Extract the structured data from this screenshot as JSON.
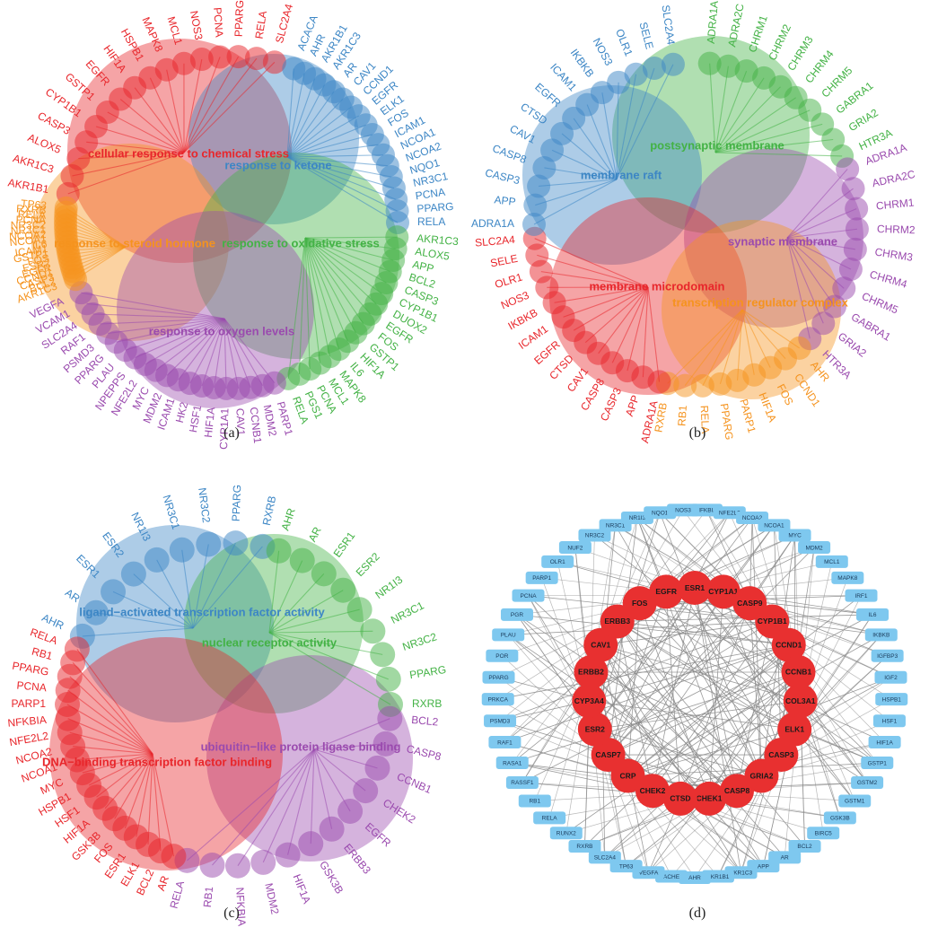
{
  "captions": {
    "a": "(a)",
    "b": "(b)",
    "c": "(c)",
    "d": "(d)"
  },
  "colors": {
    "red": "#e8262b",
    "blue": "#3c86c5",
    "green": "#43b245",
    "purple": "#9a4aae",
    "orange": "#f5931e",
    "node_red": "#e83030",
    "node_blue": "#7ec8ef",
    "edge": "#8a8a8a"
  },
  "panel_a": {
    "terms": [
      {
        "name": "cellular response to chemical stress",
        "color": "red"
      },
      {
        "name": "response to ketone",
        "color": "blue"
      },
      {
        "name": "response to steroid hormone",
        "color": "orange"
      },
      {
        "name": "response to oxidative stress",
        "color": "green"
      },
      {
        "name": "response to oxygen levels",
        "color": "purple"
      }
    ],
    "groups": [
      {
        "color": "red",
        "genes": [
          "AKR1B1",
          "AKR1C3",
          "ALOX5",
          "CASP3",
          "CYP1B1",
          "GSTP1",
          "EGFR",
          "HIF1A",
          "HSPB1",
          "MAPK8",
          "MCL1",
          "NOS3",
          "PCNA",
          "PPARG",
          "RELA",
          "SLC2A4"
        ]
      },
      {
        "color": "blue",
        "genes": [
          "ACACA",
          "AHR",
          "AKR1B1",
          "AKR1C3",
          "AR",
          "CAV1",
          "CCND1",
          "EGFR",
          "ELK1",
          "FOS",
          "ICAM1",
          "NCOA1",
          "NCOA2",
          "NQO1",
          "NR3C1",
          "PCNA",
          "PPARG",
          "RELA"
        ]
      },
      {
        "color": "green",
        "genes": [
          "AKR1C3",
          "ALOX5",
          "APP",
          "BCL2",
          "CASP3",
          "CYP1B1",
          "DUOX2",
          "EGFR",
          "FOS",
          "GSTP1",
          "HIF1A",
          "IL6",
          "MAPK8",
          "MCL1",
          "PCNA",
          "PGS1",
          "RELA"
        ]
      },
      {
        "color": "purple",
        "genes": [
          "PARP1",
          "MDM2",
          "CCNB1",
          "CAV1",
          "CYP1A1",
          "HIF1A",
          "HSF1",
          "HK2",
          "ICAM1",
          "MDM2",
          "MYC",
          "NFE2L2",
          "NPEPPS",
          "PLAU",
          "PPARG",
          "PSMD3",
          "RAF1",
          "SLC2A4",
          "VCAM1",
          "VEGFA"
        ]
      },
      {
        "color": "orange",
        "genes": [
          "AKR1C3",
          "BCL2",
          "CASP3",
          "CCND1",
          "EGFR",
          "ESR2",
          "FOS",
          "GSTP1",
          "ICAM1",
          "IL6",
          "NCOA1",
          "NCOA2",
          "NR3C1",
          "NR3C2",
          "PCNA",
          "RELA",
          "RXRB",
          "TP63"
        ]
      }
    ]
  },
  "panel_b": {
    "terms": [
      {
        "name": "postsynaptic membrane",
        "color": "green"
      },
      {
        "name": "membrane raft",
        "color": "blue"
      },
      {
        "name": "synaptic membrane",
        "color": "purple"
      },
      {
        "name": "membrane microdomain",
        "color": "red"
      },
      {
        "name": "transcription regulator complex",
        "color": "orange"
      }
    ],
    "groups": [
      {
        "color": "green",
        "genes": [
          "ADRA1A",
          "ADRA2C",
          "CHRM1",
          "CHRM2",
          "CHRM3",
          "CHRM4",
          "CHRM5",
          "GABRA1",
          "GRIA2",
          "HTR3A"
        ]
      },
      {
        "color": "purple",
        "genes": [
          "ADRA1A",
          "ADRA2C",
          "CHRM1",
          "CHRM2",
          "CHRM3",
          "CHRM4",
          "CHRM5",
          "GABRA1",
          "GRIA2",
          "HTR3A"
        ]
      },
      {
        "color": "orange",
        "genes": [
          "AHR",
          "CCND1",
          "FOS",
          "HIF1A",
          "PARP1",
          "PPARG",
          "RELA",
          "RB1",
          "RXRB"
        ]
      },
      {
        "color": "red",
        "genes": [
          "ADRA1A",
          "APP",
          "CASP3",
          "CASP8",
          "CAV1",
          "CTSD",
          "EGFR",
          "ICAM1",
          "IKBKB",
          "NOS3",
          "OLR1",
          "SELE",
          "SLC2A4"
        ]
      },
      {
        "color": "blue",
        "genes": [
          "ADRA1A",
          "APP",
          "CASP3",
          "CASP8",
          "CAV1",
          "CTSD",
          "EGFR",
          "ICAM1",
          "IKBKB",
          "NOS3",
          "OLR1",
          "SELE",
          "SLC2A4"
        ]
      }
    ]
  },
  "panel_c": {
    "terms": [
      {
        "name": "ligand−activated transcription factor activity",
        "color": "blue"
      },
      {
        "name": "nuclear receptor activity",
        "color": "green"
      },
      {
        "name": "ubiquitin−like protein ligase binding",
        "color": "purple"
      },
      {
        "name": "DNA−binding transcription factor binding",
        "color": "red"
      }
    ],
    "groups": [
      {
        "color": "blue",
        "genes": [
          "AHR",
          "AR",
          "ESR1",
          "ESR2",
          "NR1I3",
          "NR3C1",
          "NR3C2",
          "PPARG",
          "RXRB"
        ]
      },
      {
        "color": "green",
        "genes": [
          "AHR",
          "AR",
          "ESR1",
          "ESR2",
          "NR1I3",
          "NR3C1",
          "NR3C2",
          "PPARG",
          "RXRB"
        ]
      },
      {
        "color": "purple",
        "genes": [
          "BCL2",
          "CASP8",
          "CCNB1",
          "CHEK2",
          "EGFR",
          "ERBB3",
          "GSK3B",
          "HIF1A",
          "MDM2",
          "NFKBIA",
          "RB1",
          "RELA"
        ]
      },
      {
        "color": "red",
        "genes": [
          "AR",
          "BCL2",
          "ELK1",
          "ESR1",
          "FOS",
          "GSK3B",
          "HIF1A",
          "HSF1",
          "HSPB1",
          "MYC",
          "NCOA1",
          "NCOA2",
          "NFE2L2",
          "NFKBIA",
          "PARP1",
          "PCNA",
          "PPARG",
          "RB1",
          "RELA"
        ]
      }
    ]
  },
  "panel_d": {
    "core_nodes": [
      "ESR1",
      "CYP1A1",
      "CASP9",
      "CYP1B1",
      "CCND1",
      "CCNB1",
      "COL3A1",
      "ELK1",
      "CASP3",
      "GRIA2",
      "CASP8",
      "CHEK1",
      "CTSD",
      "CHEK2",
      "CRP",
      "CASP7",
      "ESR2",
      "CYP3A4",
      "ERBB2",
      "CAV1",
      "ERBB3",
      "FOS",
      "EGFR"
    ],
    "outer_nodes": [
      "NFKBIA",
      "NFE2L2",
      "NCOA2",
      "NCOA1",
      "MYC",
      "MDM2",
      "MCL1",
      "MAPK8",
      "IRF1",
      "IL6",
      "IKBKB",
      "IGFBP3",
      "IGF2",
      "HSPB1",
      "HSF1",
      "HIF1A",
      "GSTP1",
      "GSTM2",
      "GSTM1",
      "GSK3B",
      "BIRC5",
      "BCL2",
      "AR",
      "APP",
      "AKR1C3",
      "AKR1B1",
      "AHR",
      "ACHE",
      "VEGFA",
      "TP63",
      "SLC2A4",
      "RXRB",
      "RUNX2",
      "RELA",
      "RB1",
      "RASSF1",
      "RASA1",
      "RAF1",
      "PSMD3",
      "PRKCA",
      "PPARG",
      "POR",
      "PLAU",
      "PGR",
      "PCNA",
      "PARP1",
      "OLR1",
      "NUF2",
      "NR3C2",
      "NR3C1",
      "NR1I3",
      "NQO1",
      "NOS3"
    ]
  }
}
